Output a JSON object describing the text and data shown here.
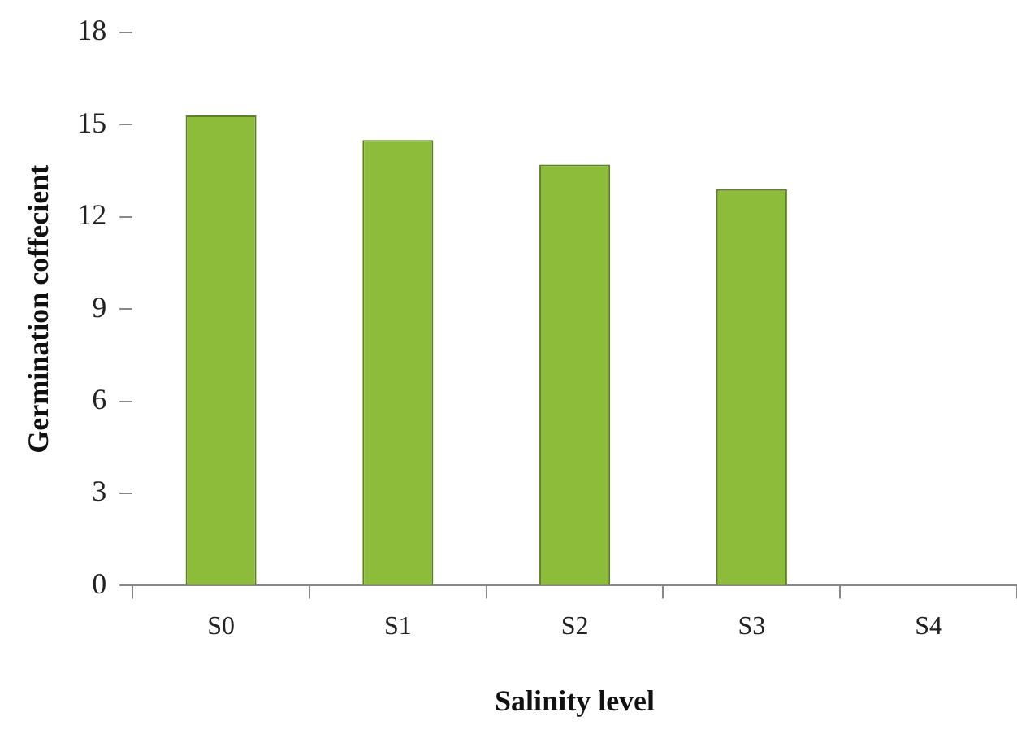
{
  "chart_data": {
    "type": "bar",
    "xlabel": "Salinity level",
    "ylabel": "Germination coffecient",
    "categories": [
      "S0",
      "S1",
      "S2",
      "S3",
      "S4"
    ],
    "values": [
      15.3,
      14.5,
      13.7,
      12.9,
      0
    ],
    "color": "#8dbb3a",
    "ylim": [
      0,
      18
    ],
    "yticks": [
      0,
      3,
      6,
      9,
      12,
      15,
      18
    ],
    "grid": false,
    "legend": false
  }
}
